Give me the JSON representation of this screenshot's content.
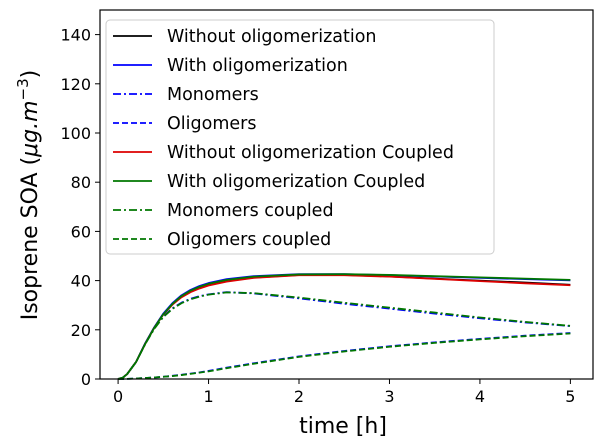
{
  "chart_data": {
    "type": "line",
    "title": "",
    "xlabel": "time [h]",
    "ylabel_main": "Isoprene SOA (",
    "ylabel_unit": "μg.m",
    "ylabel_exp": "−3",
    "ylabel_close": ")",
    "xlim": [
      -0.2,
      5.25
    ],
    "ylim": [
      0,
      150
    ],
    "xticks": [
      0,
      1,
      2,
      3,
      4,
      5
    ],
    "yticks": [
      0,
      20,
      40,
      60,
      80,
      100,
      120,
      140
    ],
    "grid": false,
    "legend_position": "upper-left",
    "x": [
      0,
      0.05,
      0.1,
      0.2,
      0.3,
      0.4,
      0.5,
      0.6,
      0.7,
      0.8,
      0.9,
      1.0,
      1.2,
      1.5,
      2.0,
      2.5,
      3.0,
      3.5,
      4.0,
      4.5,
      5.0
    ],
    "series": [
      {
        "name": "Without oligomerization",
        "color": "#000000",
        "dash": "solid",
        "values": [
          0,
          0.5,
          2,
          7,
          14.5,
          21,
          26.5,
          30.5,
          33.5,
          35.5,
          37,
          38.2,
          39.8,
          41.2,
          42.3,
          42.3,
          41.7,
          40.8,
          40.0,
          39.2,
          38.3
        ]
      },
      {
        "name": "With oligomerization",
        "color": "#0000ff",
        "dash": "solid",
        "values": [
          0,
          0.5,
          2,
          7,
          14.5,
          21,
          26.6,
          30.8,
          34,
          36.2,
          37.8,
          39,
          40.6,
          41.8,
          42.6,
          42.6,
          42.2,
          41.7,
          41.1,
          40.6,
          40.1
        ]
      },
      {
        "name": "Monomers",
        "color": "#0000ff",
        "dash": "dashdot",
        "values": [
          0,
          0.5,
          2,
          7,
          14.3,
          20.6,
          25.4,
          28.7,
          31,
          32.6,
          33.7,
          34.4,
          35.3,
          34.8,
          32.8,
          30.6,
          28.6,
          26.6,
          24.7,
          23,
          21.5
        ]
      },
      {
        "name": "Oligomers",
        "color": "#0000ff",
        "dash": "dashed",
        "values": [
          0,
          0,
          0.05,
          0.2,
          0.4,
          0.6,
          0.9,
          1.3,
          1.7,
          2.2,
          2.7,
          3.3,
          4.6,
          6.4,
          9.2,
          11.4,
          13.3,
          14.9,
          16.3,
          17.6,
          18.7
        ]
      },
      {
        "name": "Without oligomerization Coupled",
        "color": "#dd0000",
        "dash": "solid",
        "values": [
          0,
          0.5,
          2,
          7,
          14.3,
          20.8,
          26.2,
          30.2,
          33.2,
          35.3,
          36.8,
          38,
          39.6,
          41.1,
          42.2,
          42.2,
          41.6,
          40.7,
          39.8,
          38.9,
          38.1
        ]
      },
      {
        "name": "With oligomerization Coupled",
        "color": "#007700",
        "dash": "solid",
        "values": [
          0,
          0.5,
          2,
          7,
          14.3,
          20.8,
          26.3,
          30.5,
          33.7,
          35.9,
          37.5,
          38.7,
          40.3,
          41.6,
          42.5,
          42.6,
          42.3,
          41.8,
          41.3,
          40.8,
          40.3
        ]
      },
      {
        "name": "Monomers coupled",
        "color": "#007700",
        "dash": "dashdot",
        "values": [
          0,
          0.5,
          2,
          7,
          14.2,
          20.4,
          25.2,
          28.5,
          30.8,
          32.4,
          33.5,
          34.3,
          35.2,
          34.9,
          33.1,
          31,
          29,
          27,
          25,
          23.2,
          21.6
        ]
      },
      {
        "name": "Oligomers coupled",
        "color": "#007700",
        "dash": "dashed",
        "values": [
          0,
          0,
          0.05,
          0.2,
          0.4,
          0.6,
          0.9,
          1.2,
          1.6,
          2.1,
          2.6,
          3.1,
          4.4,
          6.2,
          9,
          11.2,
          13.1,
          14.7,
          16.1,
          17.4,
          18.5
        ]
      }
    ]
  }
}
